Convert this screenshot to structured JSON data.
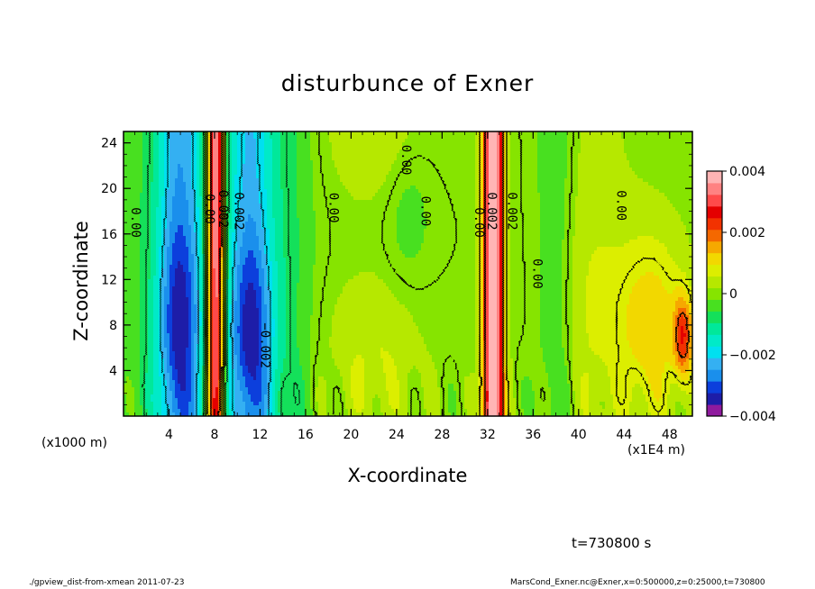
{
  "chart_data": {
    "type": "heatmap",
    "title": "disturbunce of Exner",
    "xlabel": "X-coordinate",
    "ylabel": "Z-coordinate",
    "x_unit_left": "(x1000 m)",
    "x_unit_right": "(x1E4 m)",
    "xlim": [
      0,
      50
    ],
    "ylim": [
      0,
      25
    ],
    "x_ticks": [
      4,
      8,
      12,
      16,
      20,
      24,
      28,
      32,
      36,
      40,
      44,
      48
    ],
    "x_tick_labels": [
      "4",
      "8",
      "12",
      "16",
      "20",
      "24",
      "28",
      "32",
      "36",
      "40",
      "44",
      "48"
    ],
    "y_ticks": [
      4,
      8,
      12,
      16,
      20,
      24
    ],
    "y_tick_labels": [
      "4",
      "8",
      "12",
      "16",
      "20",
      "24"
    ],
    "colorbar": {
      "range": [
        -0.004,
        0.004
      ],
      "tick_values": [
        0.004,
        0.002,
        0,
        -0.002,
        -0.004
      ],
      "tick_labels": [
        "0.004",
        "0.002",
        "0",
        "−0.002",
        "−0.004"
      ],
      "colors": [
        "#8f1a9e",
        "#1d1da8",
        "#0c3fdc",
        "#1a8fec",
        "#34b0f2",
        "#00e0f0",
        "#00eac8",
        "#00e89a",
        "#14e05a",
        "#48e020",
        "#86e400",
        "#b6e800",
        "#dcee00",
        "#f2d800",
        "#f6a800",
        "#f46800",
        "#f23200",
        "#e40000",
        "#ff4a4a",
        "#ff8282",
        "#ffb4b4"
      ]
    },
    "contour_labels": [
      {
        "text": "0.00",
        "x": 0.7,
        "z": 17
      },
      {
        "text": "0.00",
        "x": 7.2,
        "z": 18.2
      },
      {
        "text": "0.002",
        "x": 8.4,
        "z": 18.2
      },
      {
        "text": "0.002",
        "x": 9.8,
        "z": 18.0
      },
      {
        "text": "−0.002",
        "x": 12.1,
        "z": 6.2
      },
      {
        "text": "0.00",
        "x": 18.1,
        "z": 18.3
      },
      {
        "text": "0.00",
        "x": 24.5,
        "z": 22.5
      },
      {
        "text": "0.00",
        "x": 26.2,
        "z": 18.0
      },
      {
        "text": "0.00",
        "x": 30.9,
        "z": 17.0
      },
      {
        "text": "0.002",
        "x": 32.0,
        "z": 18.0
      },
      {
        "text": "0.002",
        "x": 33.8,
        "z": 18.0
      },
      {
        "text": "0.00",
        "x": 36.0,
        "z": 12.5
      },
      {
        "text": "0.00",
        "x": 43.4,
        "z": 18.5
      }
    ]
  },
  "time_label": "t=730800 s",
  "footer_left": "./gpview_dist-from-xmean   2011-07-23",
  "footer_right": "MarsCond_Exner.nc@Exner,x=0:500000,z=0:25000,t=730800"
}
